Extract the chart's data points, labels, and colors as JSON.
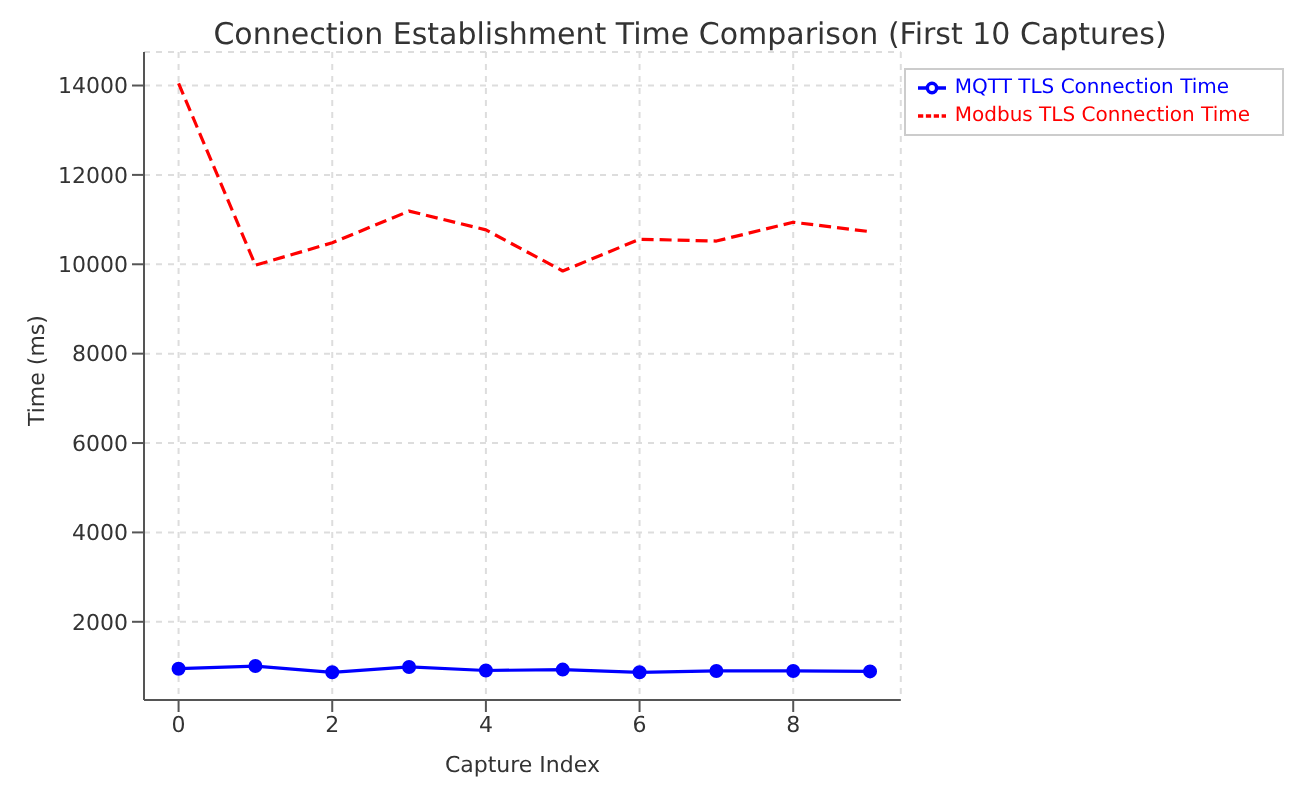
{
  "chart_data": {
    "type": "line",
    "title": "Connection Establishment Time Comparison (First 10 Captures)",
    "xlabel": "Capture Index",
    "ylabel": "Time (ms)",
    "x": [
      0,
      1,
      2,
      3,
      4,
      5,
      6,
      7,
      8,
      9
    ],
    "series": [
      {
        "name": "MQTT TLS Connection Time",
        "color": "#0000ff",
        "marker": "circle",
        "line_style": "solid",
        "values": [
          950,
          1010,
          870,
          990,
          910,
          930,
          870,
          900,
          900,
          890
        ]
      },
      {
        "name": "Modbus TLS Connection Time",
        "color": "#ff0000",
        "marker": "none",
        "line_style": "dashed",
        "values": [
          14050,
          9980,
          10480,
          11190,
          10770,
          9850,
          10560,
          10520,
          10940,
          10730
        ]
      }
    ],
    "xlim": [
      -0.45,
      9.4
    ],
    "xticks": [
      0,
      2,
      4,
      6,
      8
    ],
    "ylim": [
      250,
      14750
    ],
    "yticks": [
      2000,
      4000,
      6000,
      8000,
      10000,
      12000,
      14000
    ],
    "grid": true,
    "legend": "top right"
  }
}
